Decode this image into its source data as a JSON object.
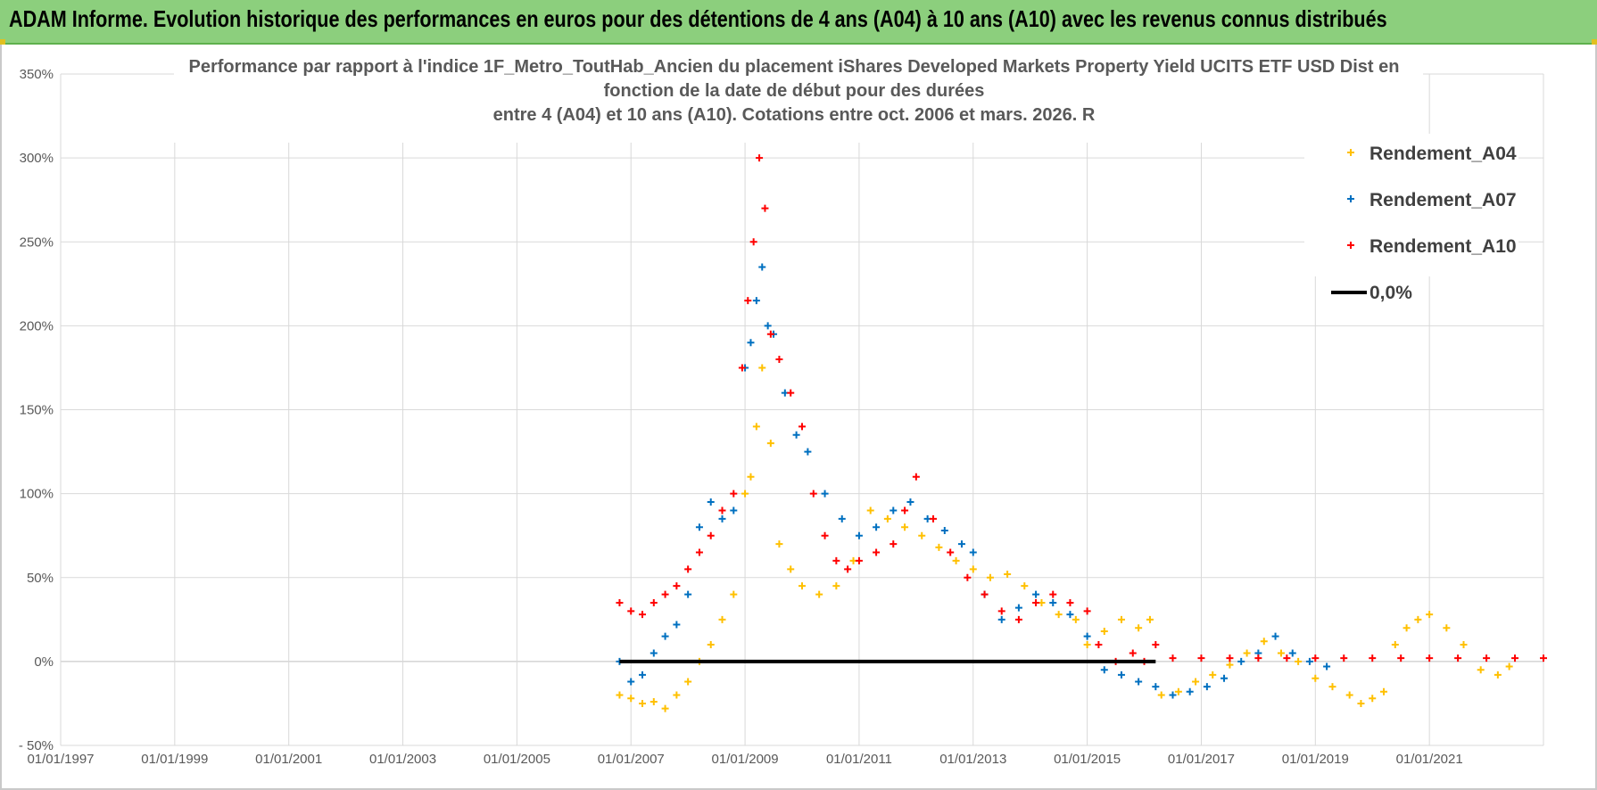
{
  "banner": {
    "text": "ADAM Informe. Evolution historique des performances en euros pour des détentions de 4 ans (A04) à 10 ans (A10) avec les revenus connus distribués"
  },
  "colors": {
    "banner_bg": "#8ccf7d",
    "a04": "#ffc000",
    "a07": "#0070c0",
    "a10": "#ff0000",
    "zero": "#000000",
    "grid": "#d9d9d9"
  },
  "chart_data": {
    "type": "scatter",
    "title": [
      "Performance par rapport à l'indice 1F_Metro_ToutHab_Ancien  du placement iShares Developed Markets Property Yield UCITS ETF USD Dist en",
      "fonction de la date de début pour des durées",
      "entre 4 (A04) et 10 ans (A10). Cotations entre oct. 2006 et mars. 2026. R"
    ],
    "xlabel": "",
    "ylabel": "",
    "xlim": [
      1997.0,
      2023.0
    ],
    "ylim": [
      -50,
      350
    ],
    "y_ticks": [
      -50,
      0,
      50,
      100,
      150,
      200,
      250,
      300,
      350
    ],
    "y_tick_labels": [
      "- 50%",
      "0%",
      "50%",
      "100%",
      "150%",
      "200%",
      "250%",
      "300%",
      "350%"
    ],
    "x_ticks": [
      1997,
      1999,
      2001,
      2003,
      2005,
      2007,
      2009,
      2011,
      2013,
      2015,
      2017,
      2019,
      2021
    ],
    "x_tick_labels": [
      "01/01/1997",
      "01/01/1999",
      "01/01/2001",
      "01/01/2003",
      "01/01/2005",
      "01/01/2007",
      "01/01/2009",
      "01/01/2011",
      "01/01/2013",
      "01/01/2015",
      "01/01/2017",
      "01/01/2019",
      "01/01/2021"
    ],
    "legend_position": "top-right",
    "series": [
      {
        "name": "Rendement_A04",
        "marker": "+",
        "color": "#ffc000",
        "x": [
          2006.8,
          2007.0,
          2007.2,
          2007.4,
          2007.6,
          2007.8,
          2008.0,
          2008.2,
          2008.4,
          2008.6,
          2008.8,
          2009.0,
          2009.1,
          2009.2,
          2009.3,
          2009.45,
          2009.6,
          2009.8,
          2010.0,
          2010.3,
          2010.6,
          2010.9,
          2011.2,
          2011.5,
          2011.8,
          2012.1,
          2012.4,
          2012.7,
          2013.0,
          2013.3,
          2013.6,
          2013.9,
          2014.2,
          2014.5,
          2014.8,
          2015.0,
          2015.3,
          2015.6,
          2015.9,
          2016.1,
          2016.3,
          2016.6,
          2016.9,
          2017.2,
          2017.5,
          2017.8,
          2018.1,
          2018.4,
          2018.7,
          2019.0,
          2019.3,
          2019.6,
          2019.8,
          2020.0,
          2020.2,
          2020.4,
          2020.6,
          2020.8,
          2021.0,
          2021.3,
          2021.6,
          2021.9,
          2022.2,
          2022.4
        ],
        "y": [
          -20,
          -22,
          -25,
          -24,
          -28,
          -20,
          -12,
          0,
          10,
          25,
          40,
          100,
          110,
          140,
          175,
          130,
          70,
          55,
          45,
          40,
          45,
          60,
          90,
          85,
          80,
          75,
          68,
          60,
          55,
          50,
          52,
          45,
          35,
          28,
          25,
          10,
          18,
          25,
          20,
          25,
          -20,
          -18,
          -12,
          -8,
          -2,
          5,
          12,
          5,
          0,
          -10,
          -15,
          -20,
          -25,
          -22,
          -18,
          10,
          20,
          25,
          28,
          20,
          10,
          -5,
          -8,
          -3
        ]
      },
      {
        "name": "Rendement_A07",
        "marker": "+",
        "color": "#0070c0",
        "x": [
          2006.8,
          2007.0,
          2007.2,
          2007.4,
          2007.6,
          2007.8,
          2008.0,
          2008.2,
          2008.4,
          2008.6,
          2008.8,
          2009.0,
          2009.1,
          2009.2,
          2009.3,
          2009.4,
          2009.5,
          2009.7,
          2009.9,
          2010.1,
          2010.4,
          2010.7,
          2011.0,
          2011.3,
          2011.6,
          2011.9,
          2012.2,
          2012.5,
          2012.8,
          2013.0,
          2013.2,
          2013.5,
          2013.8,
          2014.1,
          2014.4,
          2014.7,
          2015.0,
          2015.3,
          2015.6,
          2015.9,
          2016.2,
          2016.5,
          2016.8,
          2017.1,
          2017.4,
          2017.7,
          2018.0,
          2018.3,
          2018.6,
          2018.9,
          2019.2
        ],
        "y": [
          0,
          -12,
          -8,
          5,
          15,
          22,
          40,
          80,
          95,
          85,
          90,
          175,
          190,
          215,
          235,
          200,
          195,
          160,
          135,
          125,
          100,
          85,
          75,
          80,
          90,
          95,
          85,
          78,
          70,
          65,
          40,
          25,
          32,
          40,
          35,
          28,
          15,
          -5,
          -8,
          -12,
          -15,
          -20,
          -18,
          -15,
          -10,
          0,
          5,
          15,
          5,
          0,
          -3
        ]
      },
      {
        "name": "Rendement_A10",
        "marker": "+",
        "color": "#ff0000",
        "x": [
          2006.8,
          2007.0,
          2007.2,
          2007.4,
          2007.6,
          2007.8,
          2008.0,
          2008.2,
          2008.4,
          2008.6,
          2008.8,
          2008.95,
          2009.05,
          2009.15,
          2009.25,
          2009.35,
          2009.45,
          2009.6,
          2009.8,
          2010.0,
          2010.2,
          2010.4,
          2010.6,
          2010.8,
          2011.0,
          2011.3,
          2011.6,
          2011.8,
          2012.0,
          2012.3,
          2012.6,
          2012.9,
          2013.2,
          2013.5,
          2013.8,
          2014.1,
          2014.4,
          2014.7,
          2015.0,
          2015.2,
          2015.5,
          2015.8,
          2016.0,
          2016.2,
          2016.5,
          2017.0,
          2017.5,
          2018.0,
          2018.5,
          2019.0,
          2019.5,
          2020.0,
          2020.5,
          2021.0,
          2021.5,
          2022.0,
          2022.5,
          2023.0
        ],
        "y": [
          35,
          30,
          28,
          35,
          40,
          45,
          55,
          65,
          75,
          90,
          100,
          175,
          215,
          250,
          300,
          270,
          195,
          180,
          160,
          140,
          100,
          75,
          60,
          55,
          60,
          65,
          70,
          90,
          110,
          85,
          65,
          50,
          40,
          30,
          25,
          35,
          40,
          35,
          30,
          10,
          0,
          5,
          0,
          10,
          2,
          2,
          2,
          2,
          2,
          2,
          2,
          2,
          2,
          2,
          2,
          2,
          2,
          2
        ]
      },
      {
        "name": "0,0%",
        "marker": "line",
        "color": "#000000",
        "x": [
          2006.8,
          2016.2
        ],
        "y": [
          0,
          0
        ]
      }
    ]
  }
}
